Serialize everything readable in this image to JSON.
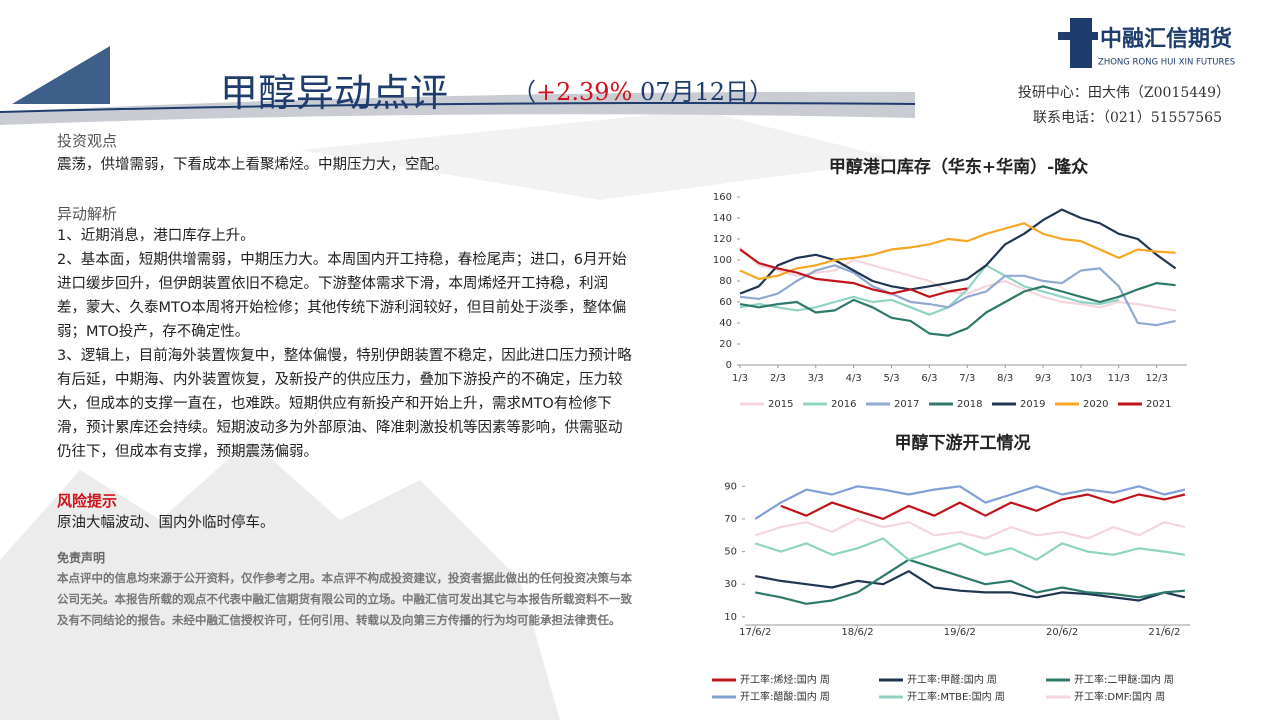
{
  "header": {
    "title": "甲醇异动点评",
    "prefix": "（",
    "change": "+2.39%",
    "suffix": " 07月12日）"
  },
  "logo": {
    "name": "中融汇信期货",
    "english": "ZHONG RONG HUI XIN FUTURES"
  },
  "contact": {
    "analyst": "投研中心：田大伟（Z0015449）",
    "phone": "联系电话：（021）51557565"
  },
  "sections": {
    "view": {
      "heading": "投资观点",
      "text": "震荡，供增需弱，下看成本上看聚烯烃。中期压力大，空配。"
    },
    "analysis": {
      "heading": "异动解析",
      "paragraphs": [
        "1、近期消息，港口库存上升。",
        "2、基本面，短期供增需弱，中期压力大。本周国内开工持稳，春检尾声；进口，6月开始进口缓步回升，但伊朗装置依旧不稳定。下游整体需求下滑，本周烯烃开工持稳，利润差，蒙大、久泰MTO本周将开始检修；其他传统下游利润较好，但目前处于淡季，整体偏弱；MTO投产，存不确定性。",
        "3、逻辑上，目前海外装置恢复中，整体偏慢，特别伊朗装置不稳定，因此进口压力预计略有后延，中期海、内外装置恢复，及新投产的供应压力，叠加下游投产的不确定，压力较大，但成本的支撑一直在，也难跌。短期供应有新投产和开始上升，需求MTO有检修下滑，预计累库还会持续。短期波动多为外部原油、降准刺激投机等因素等影响，供需驱动仍往下，但成本有支撑，预期震荡偏弱。"
      ]
    },
    "risk": {
      "heading": "风险提示",
      "text": "原油大幅波动、国内外临时停车。"
    },
    "disclaimer": {
      "heading": "免责声明",
      "text": "本点评中的信息均来源于公开资料，仅作参考之用。本点评不构成投资建议，投资者据此做出的任何投资决策与本公司无关。本报告所载的观点不代表中融汇信期货有限公司的立场。中融汇信可发出其它与本报告所载资料不一致及有不同结论的报告。未经中融汇信授权许可，任何引用、转载以及向第三方传播的行为均可能承担法律责任。"
    }
  },
  "chart_data": [
    {
      "type": "line",
      "title": "甲醇港口库存（华东+华南）-隆众",
      "x": [
        1,
        1.5,
        2,
        2.5,
        3,
        3.5,
        4,
        4.5,
        5,
        5.5,
        6,
        6.5,
        7,
        7.5,
        8,
        8.5,
        9,
        9.5,
        10,
        10.5,
        11,
        11.5,
        12,
        12.5
      ],
      "xlim": [
        1,
        12.8
      ],
      "xticks": [
        {
          "value": 1,
          "label": "1/3"
        },
        {
          "value": 2,
          "label": "2/3"
        },
        {
          "value": 3,
          "label": "3/3"
        },
        {
          "value": 4,
          "label": "4/3"
        },
        {
          "value": 5,
          "label": "5/3"
        },
        {
          "value": 6,
          "label": "6/3"
        },
        {
          "value": 7,
          "label": "7/3"
        },
        {
          "value": 8,
          "label": "8/3"
        },
        {
          "value": 9,
          "label": "9/3"
        },
        {
          "value": 10,
          "label": "10/3"
        },
        {
          "value": 11,
          "label": "11/3"
        },
        {
          "value": 12,
          "label": "12/3"
        }
      ],
      "ylim": [
        0,
        160
      ],
      "yticks": [
        0,
        20,
        40,
        60,
        80,
        100,
        120,
        140,
        160
      ],
      "series": [
        {
          "name": "2015",
          "color": "#f4d6dc",
          "values": [
            112,
            95,
            90,
            85,
            88,
            90,
            100,
            95,
            90,
            85,
            80,
            70,
            68,
            75,
            80,
            72,
            65,
            60,
            58,
            55,
            60,
            58,
            55,
            52
          ]
        },
        {
          "name": "2016",
          "color": "#8fd3c2",
          "values": [
            55,
            58,
            55,
            52,
            55,
            60,
            65,
            60,
            62,
            55,
            48,
            55,
            72,
            95,
            85,
            75,
            70,
            65,
            60,
            58,
            62,
            null,
            null,
            null
          ]
        },
        {
          "name": "2017",
          "color": "#8fa9d2",
          "values": [
            65,
            63,
            68,
            80,
            90,
            95,
            88,
            75,
            68,
            60,
            58,
            55,
            65,
            70,
            85,
            85,
            80,
            78,
            90,
            92,
            75,
            40,
            38,
            42
          ]
        },
        {
          "name": "2018",
          "color": "#2e7a6a",
          "values": [
            58,
            55,
            58,
            60,
            50,
            52,
            62,
            55,
            45,
            42,
            30,
            28,
            35,
            50,
            60,
            70,
            75,
            70,
            65,
            60,
            65,
            72,
            78,
            76
          ]
        },
        {
          "name": "2019",
          "color": "#1f3550",
          "values": [
            68,
            75,
            95,
            102,
            105,
            100,
            90,
            80,
            75,
            72,
            75,
            78,
            82,
            95,
            115,
            125,
            138,
            148,
            140,
            135,
            125,
            120,
            105,
            92
          ]
        },
        {
          "name": "2020",
          "color": "#f5a623",
          "values": [
            90,
            82,
            85,
            92,
            95,
            100,
            102,
            105,
            110,
            112,
            115,
            120,
            118,
            125,
            130,
            135,
            125,
            120,
            118,
            110,
            102,
            110,
            108,
            107
          ]
        },
        {
          "name": "2021",
          "color": "#c0141c",
          "values": [
            110,
            97,
            92,
            88,
            82,
            80,
            78,
            72,
            68,
            72,
            65,
            70,
            73,
            null,
            null,
            null,
            null,
            null,
            null,
            null,
            null,
            null,
            null,
            null
          ]
        }
      ]
    },
    {
      "type": "line",
      "title": "甲醇下游开工情况",
      "x": [
        0,
        0.25,
        0.5,
        0.75,
        1,
        1.25,
        1.5,
        1.75,
        2,
        2.25,
        2.5,
        2.75,
        3,
        3.25,
        3.5,
        3.75,
        4,
        4.2
      ],
      "xlim": [
        -0.1,
        4.25
      ],
      "xticks": [
        {
          "value": 0,
          "label": "17/6/2"
        },
        {
          "value": 1,
          "label": "18/6/2"
        },
        {
          "value": 2,
          "label": "19/6/2"
        },
        {
          "value": 3,
          "label": "20/6/2"
        },
        {
          "value": 4,
          "label": "21/6/2"
        }
      ],
      "ylim": [
        5,
        100
      ],
      "yticks": [
        10,
        30,
        50,
        70,
        90
      ],
      "series": [
        {
          "name": "开工率:烯烃:国内 周",
          "color": "#c0141c",
          "values": [
            null,
            78,
            72,
            80,
            75,
            70,
            78,
            72,
            80,
            72,
            80,
            75,
            82,
            85,
            80,
            85,
            82,
            85
          ]
        },
        {
          "name": "开工率:甲醛:国内 周",
          "color": "#1f3550",
          "values": [
            35,
            32,
            30,
            28,
            32,
            30,
            38,
            28,
            26,
            25,
            25,
            22,
            25,
            24,
            22,
            20,
            25,
            22
          ]
        },
        {
          "name": "开工率:二甲醚:国内 周",
          "color": "#2e7a6a",
          "values": [
            25,
            22,
            18,
            20,
            25,
            35,
            45,
            40,
            35,
            30,
            32,
            25,
            28,
            25,
            24,
            22,
            25,
            26
          ]
        },
        {
          "name": "开工率:醋酸:国内 周",
          "color": "#7f9fd6",
          "values": [
            70,
            80,
            88,
            85,
            90,
            88,
            85,
            88,
            90,
            80,
            85,
            90,
            85,
            88,
            86,
            90,
            85,
            88
          ]
        },
        {
          "name": "开工率:MTBE:国内 周",
          "color": "#8fd3c2",
          "values": [
            55,
            50,
            55,
            48,
            52,
            58,
            45,
            50,
            55,
            48,
            52,
            45,
            55,
            50,
            48,
            52,
            50,
            48
          ]
        },
        {
          "name": "开工率:DMF:国内 周",
          "color": "#f4d6dc",
          "values": [
            60,
            65,
            68,
            62,
            70,
            65,
            68,
            60,
            62,
            58,
            65,
            60,
            62,
            58,
            65,
            60,
            68,
            65
          ]
        }
      ]
    }
  ]
}
